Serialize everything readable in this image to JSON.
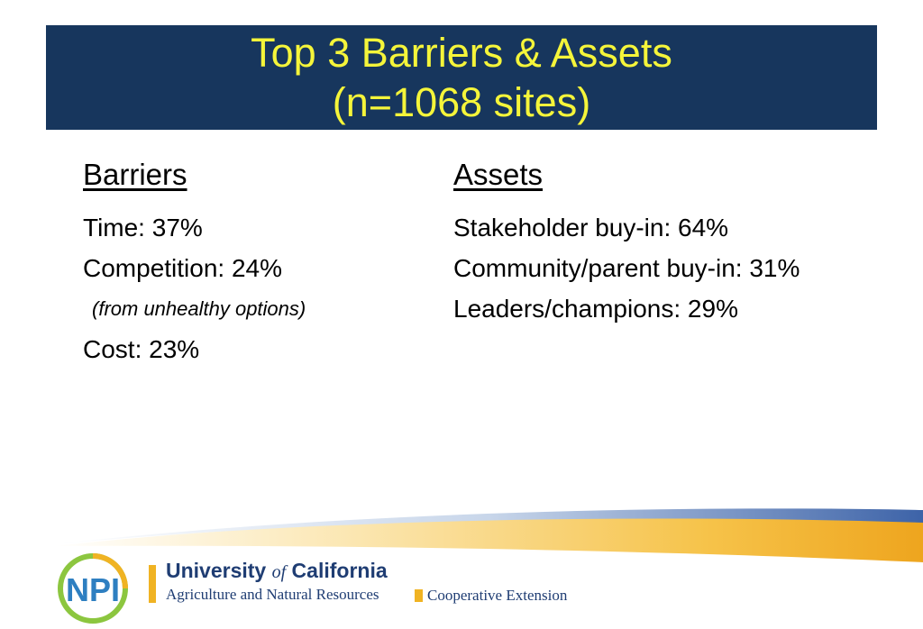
{
  "slide": {
    "title_line1": "Top 3 Barriers & Assets",
    "title_line2": "(n=1068 sites)"
  },
  "barriers": {
    "heading": "Barriers",
    "items": [
      "Time: 37%",
      "Competition: 24%",
      "(from unhealthy options)",
      "Cost: 23%"
    ]
  },
  "assets": {
    "heading": "Assets",
    "items": [
      "Stakeholder buy-in: 64%",
      "Community/parent buy-in: 31%",
      "Leaders/champions: 29%"
    ]
  },
  "footer": {
    "logo_text": "NPI",
    "org_name_part1": "University ",
    "org_name_of": "of",
    "org_name_part2": " California",
    "org_sub": "Agriculture and Natural Resources",
    "program": "Cooperative Extension"
  },
  "colors": {
    "title_bg": "#17365d",
    "title_text": "#f5f53a",
    "gold": "#f0b323",
    "navy": "#1f3d73"
  }
}
